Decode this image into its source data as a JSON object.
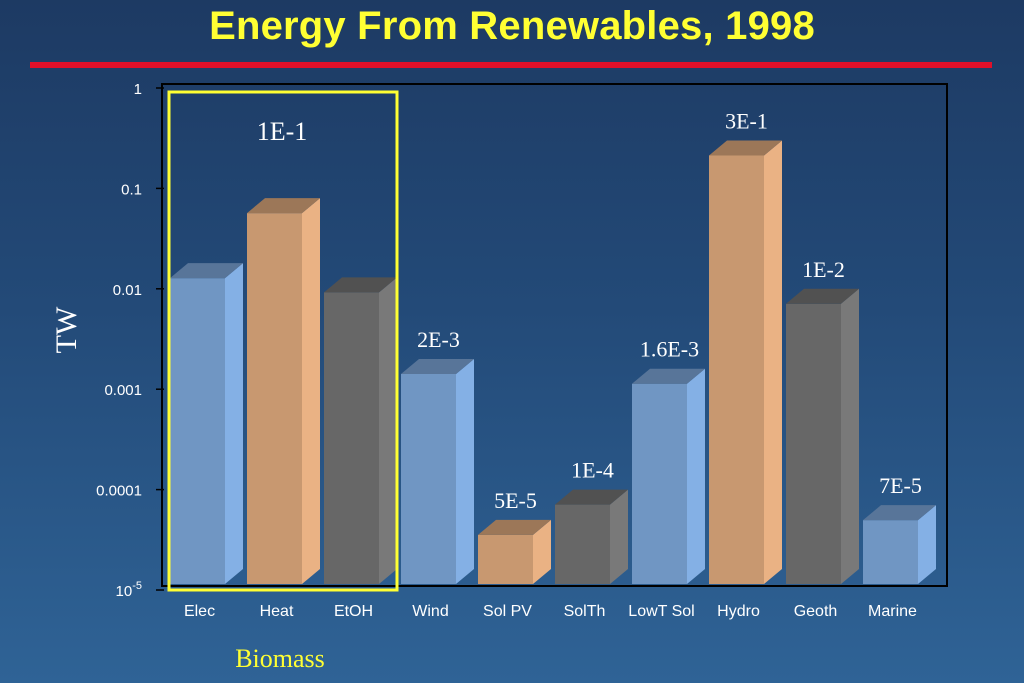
{
  "title": "Energy From Renewables, 1998",
  "colors": {
    "title": "#ffff33",
    "title_rule": "#e0102a",
    "blue": "#7aa3d4",
    "tan": "#d9a57a",
    "gray": "#707070",
    "highlight_box": "#ffff33"
  },
  "group_label": "Biomass",
  "chart_data": {
    "type": "bar",
    "title": "",
    "xlabel": "",
    "ylabel": "TW",
    "yscale": "log",
    "ylim": [
      1e-05,
      1
    ],
    "yticks": [
      {
        "value": 1,
        "label": "1"
      },
      {
        "value": 0.1,
        "label": "0.1"
      },
      {
        "value": 0.01,
        "label": "0.01"
      },
      {
        "value": 0.001,
        "label": "0.001"
      },
      {
        "value": 0.0001,
        "label": "0.0001"
      },
      {
        "value": 1e-05,
        "label": "10",
        "sup": "-5"
      }
    ],
    "categories": [
      "Elec",
      "Heat",
      "EtOH",
      "Wind",
      "Sol PV",
      "SolTh",
      "LowT Sol",
      "Hydro",
      "Geoth",
      "Marine"
    ],
    "values": [
      0.018,
      0.08,
      0.013,
      0.002,
      5e-05,
      0.0001,
      0.0016,
      0.3,
      0.01,
      7e-05
    ],
    "bar_colors": [
      "blue",
      "tan",
      "gray",
      "blue",
      "tan",
      "gray",
      "blue",
      "tan",
      "gray",
      "blue"
    ],
    "data_labels": [
      "",
      "",
      "",
      "2E-3",
      "5E-5",
      "1E-4",
      "1.6E-3",
      "3E-1",
      "1E-2",
      "7E-5"
    ],
    "annotations": [
      {
        "text": "1E-1",
        "target": "Biomass"
      }
    ],
    "grid": false,
    "highlight_group": {
      "name": "Biomass",
      "categories": [
        "Elec",
        "Heat",
        "EtOH"
      ]
    }
  }
}
